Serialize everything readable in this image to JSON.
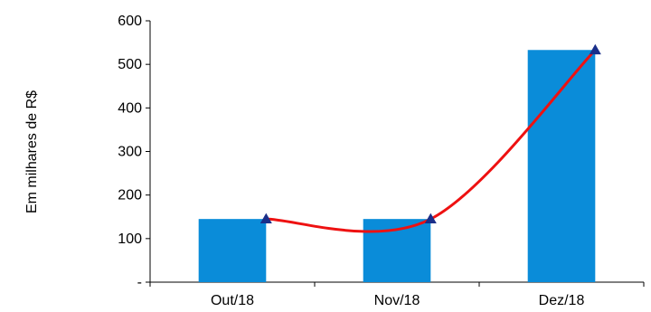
{
  "chart_data": {
    "type": "bar",
    "title": "",
    "xlabel": "",
    "ylabel": "Em milhares de R$",
    "categories": [
      "Out/18",
      "Nov/18",
      "Dez/18"
    ],
    "series": [
      {
        "type": "bar",
        "values": [
          145,
          145,
          533
        ],
        "color": "#0a8cd9"
      },
      {
        "type": "line",
        "values": [
          145,
          145,
          533
        ],
        "color": "#ee1111",
        "marker": "triangle",
        "marker_color": "#1a2f8a",
        "smooth": true
      }
    ],
    "ylim": [
      0,
      600
    ],
    "yticks": [
      0,
      100,
      200,
      300,
      400,
      500,
      600
    ],
    "ytick_labels": [
      "-",
      "100",
      "200",
      "300",
      "400",
      "500",
      "600"
    ],
    "grid": false,
    "legend": "none"
  }
}
